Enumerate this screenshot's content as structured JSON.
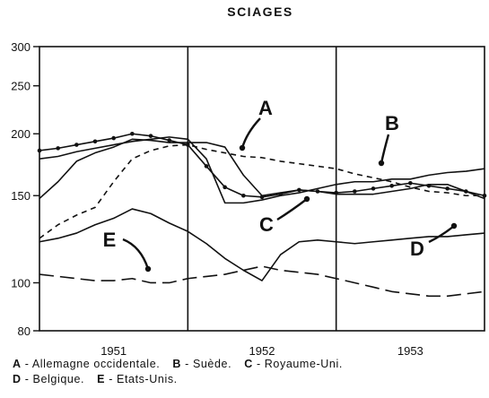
{
  "chart_data": {
    "type": "line",
    "title": "SCIAGES",
    "xlabel": "",
    "ylabel": "",
    "x": [
      1950.5,
      1950.625,
      1950.75,
      1950.875,
      1951.0,
      1951.125,
      1951.25,
      1951.375,
      1951.5,
      1951.625,
      1951.75,
      1951.875,
      1952.0,
      1952.125,
      1952.25,
      1952.375,
      1952.5,
      1952.625,
      1952.75,
      1952.875,
      1953.0,
      1953.125,
      1953.25,
      1953.375,
      1953.5
    ],
    "xlim": [
      1950.5,
      1953.5
    ],
    "x_ticks": [
      {
        "value": 1951.0,
        "label": "1951"
      },
      {
        "value": 1952.0,
        "label": "1952"
      },
      {
        "value": 1953.0,
        "label": "1953"
      }
    ],
    "year_dividers": [
      1951.5,
      1952.5
    ],
    "yscale": "log",
    "ylim": [
      80,
      300
    ],
    "y_ticks": [
      80,
      100,
      150,
      200,
      250,
      300
    ],
    "grid": false,
    "series": [
      {
        "name": "A",
        "style": "solid-dotted",
        "marker": "dot",
        "values": [
          185,
          187,
          190,
          193,
          196,
          200,
          198,
          194,
          190,
          172,
          156,
          150,
          149,
          151,
          154,
          153,
          152,
          153,
          155,
          157,
          159,
          157,
          155,
          153,
          150
        ]
      },
      {
        "name": "B",
        "style": "solid",
        "values": [
          178,
          180,
          184,
          187,
          190,
          193,
          195,
          197,
          195,
          178,
          145,
          145,
          147,
          150,
          152,
          155,
          158,
          160,
          160,
          162,
          162,
          165,
          167,
          168,
          170
        ]
      },
      {
        "name": "C",
        "style": "solid",
        "values": [
          148,
          160,
          176,
          183,
          188,
          195,
          194,
          192,
          192,
          192,
          188,
          165,
          150,
          152,
          154,
          153,
          151,
          151,
          151,
          153,
          155,
          158,
          158,
          153,
          148
        ]
      },
      {
        "name": "D",
        "style": "solid",
        "values": [
          121,
          123,
          126,
          131,
          135,
          141,
          138,
          132,
          127,
          120,
          112,
          106,
          101,
          114,
          121,
          122,
          121,
          120,
          121,
          122,
          123,
          124,
          124,
          125,
          126
        ]
      },
      {
        "name": "E",
        "style": "long-dash",
        "values": [
          104,
          103,
          102,
          101,
          101,
          102,
          100,
          100,
          102,
          103,
          104,
          106,
          108,
          106,
          105,
          104,
          102,
          100,
          98,
          96,
          95,
          94,
          94,
          95,
          96
        ]
      },
      {
        "name": "",
        "style": "short-dash",
        "values": [
          123,
          131,
          137,
          142,
          160,
          178,
          185,
          189,
          190,
          186,
          183,
          180,
          179,
          176,
          174,
          172,
          170,
          166,
          163,
          160,
          156,
          153,
          152,
          150,
          150
        ]
      }
    ],
    "annotations": [
      {
        "label": "A",
        "series": "A"
      },
      {
        "label": "B",
        "series": "B"
      },
      {
        "label": "C",
        "series": "C"
      },
      {
        "label": "D",
        "series": "D"
      },
      {
        "label": "E",
        "series": "E"
      }
    ]
  },
  "legend": {
    "a_key": "A",
    "a_text": "- Allemagne occidentale.",
    "b_key": "B",
    "b_text": "- Suède.",
    "c_key": "C",
    "c_text": "- Royaume-Uni.",
    "d_key": "D",
    "d_text": "- Belgique.",
    "e_key": "E",
    "e_text": "- Etats-Unis."
  }
}
